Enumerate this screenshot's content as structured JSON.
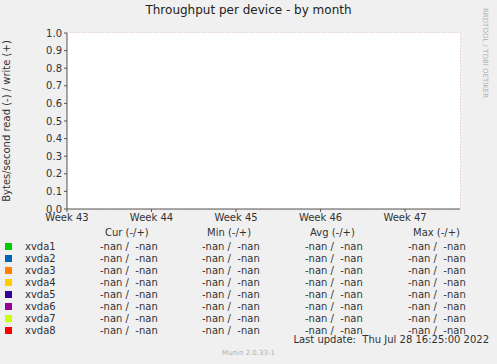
{
  "chart_data": {
    "type": "line",
    "title": "Throughput per device - by month",
    "y_label": "Bytes/second read (-) / write (+)",
    "x": [
      43,
      47.65
    ],
    "xlim": [
      43,
      47.65
    ],
    "xticks": [
      {
        "value": 43,
        "label": "Week 43"
      },
      {
        "value": 44,
        "label": "Week 44"
      },
      {
        "value": 45,
        "label": "Week 45"
      },
      {
        "value": 46,
        "label": "Week 46"
      },
      {
        "value": 47,
        "label": "Week 47"
      }
    ],
    "ylim": [
      0,
      1
    ],
    "yticks": [
      {
        "value": 0,
        "label": "0.0"
      },
      0.1,
      0.2,
      0.3,
      0.4,
      0.5,
      0.6,
      0.7,
      0.8,
      0.9,
      {
        "value": 1,
        "label": "1.0"
      }
    ],
    "grid": true,
    "legend_columns": [
      "Cur (-/+)",
      "Min (-/+)",
      "Avg (-/+)",
      "Max (-/+)"
    ],
    "series": [
      {
        "name": "xvda1",
        "color": "#00cc00",
        "values": [
          null,
          null
        ],
        "stats": [
          "-nan /  -nan",
          "-nan /  -nan",
          "-nan /  -nan",
          "-nan /  -nan"
        ]
      },
      {
        "name": "xvda2",
        "color": "#0066b3",
        "values": [
          null,
          null
        ],
        "stats": [
          "-nan /  -nan",
          "-nan /  -nan",
          "-nan /  -nan",
          "-nan /  -nan"
        ]
      },
      {
        "name": "xvda3",
        "color": "#ff8000",
        "values": [
          null,
          null
        ],
        "stats": [
          "-nan /  -nan",
          "-nan /  -nan",
          "-nan /  -nan",
          "-nan /  -nan"
        ]
      },
      {
        "name": "xvda4",
        "color": "#ffcc00",
        "values": [
          null,
          null
        ],
        "stats": [
          "-nan /  -nan",
          "-nan /  -nan",
          "-nan /  -nan",
          "-nan /  -nan"
        ]
      },
      {
        "name": "xvda5",
        "color": "#330099",
        "values": [
          null,
          null
        ],
        "stats": [
          "-nan /  -nan",
          "-nan /  -nan",
          "-nan /  -nan",
          "-nan /  -nan"
        ]
      },
      {
        "name": "xvda6",
        "color": "#990099",
        "values": [
          null,
          null
        ],
        "stats": [
          "-nan /  -nan",
          "-nan /  -nan",
          "-nan /  -nan",
          "-nan /  -nan"
        ]
      },
      {
        "name": "xvda7",
        "color": "#ccff00",
        "values": [
          null,
          null
        ],
        "stats": [
          "-nan /  -nan",
          "-nan /  -nan",
          "-nan /  -nan",
          "-nan /  -nan"
        ]
      },
      {
        "name": "xvda8",
        "color": "#ff0000",
        "values": [
          null,
          null
        ],
        "stats": [
          "-nan /  -nan",
          "-nan /  -nan",
          "-nan /  -nan",
          "-nan /  -nan"
        ]
      }
    ],
    "last_update": "Last update:  Thu Jul 28 16:25:00 2022",
    "footer": "Munin 2.0.33-1",
    "watermark": "RRDTOOL / TOBI OETIKER"
  }
}
